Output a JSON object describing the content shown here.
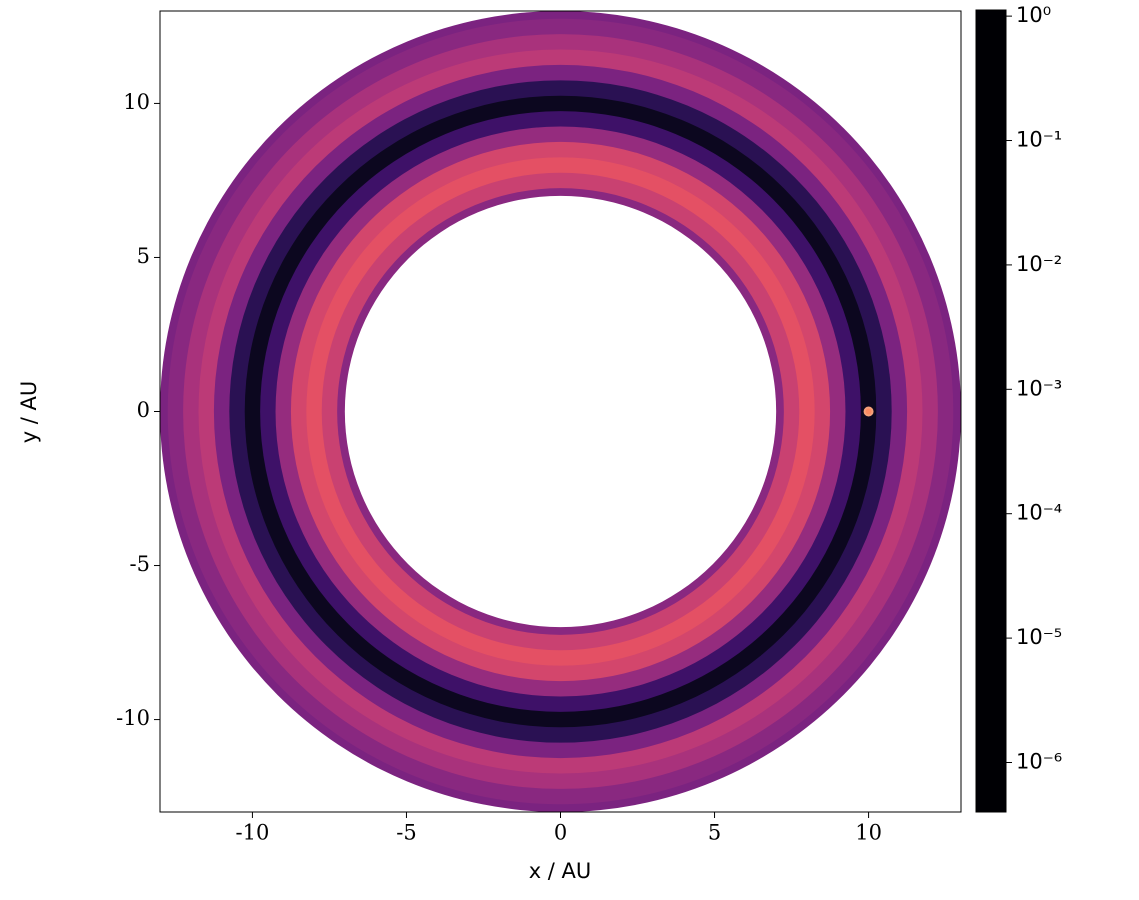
{
  "chart_data": {
    "type": "annulus_map",
    "xlabel": "x / AU",
    "ylabel": "y / AU",
    "xlim": [
      -13,
      13
    ],
    "ylim": [
      -13,
      13
    ],
    "xticks": [
      -10,
      -5,
      0,
      5,
      10
    ],
    "yticks": [
      -10,
      -5,
      0,
      5,
      10
    ],
    "radii": [
      7,
      7.5,
      8,
      8.5,
      9,
      9.5,
      10,
      10.5,
      11,
      11.5,
      12,
      12.5,
      13
    ],
    "values": [
      0.003,
      0.0003,
      0.0001,
      0.0002,
      0.002,
      0.05,
      0.5,
      0.1,
      0.005,
      0.0005,
      0.001,
      0.003,
      0.005
    ],
    "planet": {
      "x": 10,
      "y": 0
    },
    "colormap": "magma",
    "colorbar_scale": "log",
    "clim": [
      4e-07,
      1.12
    ],
    "cticks": [
      {
        "value": 1,
        "label": "10⁰"
      },
      {
        "value": 0.1,
        "label": "10⁻¹"
      },
      {
        "value": 0.01,
        "label": "10⁻²"
      },
      {
        "value": 0.001,
        "label": "10⁻³"
      },
      {
        "value": 0.0001,
        "label": "10⁻⁴"
      },
      {
        "value": 1e-05,
        "label": "10⁻⁵"
      },
      {
        "value": 1e-06,
        "label": "10⁻⁶"
      }
    ]
  }
}
